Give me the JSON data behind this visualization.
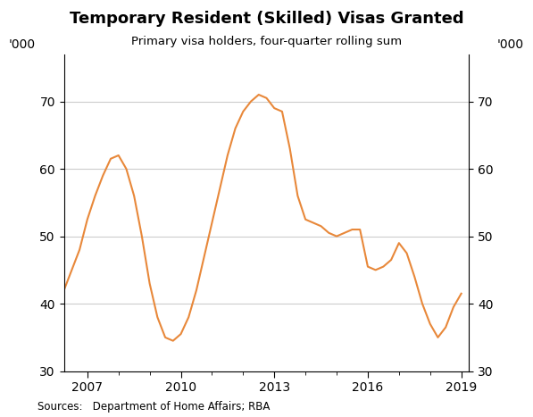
{
  "title": "Temporary Resident (Skilled) Visas Granted",
  "subtitle": "Primary visa holders, four-quarter rolling sum",
  "ylabel_left": "'000",
  "ylabel_right": "'000",
  "source": "Sources:   Department of Home Affairs; RBA",
  "line_color": "#E8883A",
  "ylim": [
    30,
    77
  ],
  "yticks": [
    30,
    40,
    50,
    60,
    70
  ],
  "xlim": [
    2006.25,
    2019.25
  ],
  "xtick_years": [
    2007,
    2010,
    2013,
    2016,
    2019
  ],
  "data": {
    "x": [
      2006.0,
      2006.25,
      2006.5,
      2006.75,
      2007.0,
      2007.25,
      2007.5,
      2007.75,
      2008.0,
      2008.25,
      2008.5,
      2008.75,
      2009.0,
      2009.25,
      2009.5,
      2009.75,
      2010.0,
      2010.25,
      2010.5,
      2010.75,
      2011.0,
      2011.25,
      2011.5,
      2011.75,
      2012.0,
      2012.25,
      2012.5,
      2012.75,
      2013.0,
      2013.25,
      2013.5,
      2013.75,
      2014.0,
      2014.25,
      2014.5,
      2014.75,
      2015.0,
      2015.25,
      2015.5,
      2015.75,
      2016.0,
      2016.25,
      2016.5,
      2016.75,
      2017.0,
      2017.25,
      2017.5,
      2017.75,
      2018.0,
      2018.25,
      2018.5,
      2018.75,
      2019.0
    ],
    "y": [
      40.0,
      42.0,
      45.0,
      48.0,
      52.5,
      56.0,
      59.0,
      61.5,
      62.0,
      60.0,
      56.0,
      50.0,
      43.0,
      38.0,
      35.0,
      34.5,
      35.5,
      38.0,
      42.0,
      47.0,
      52.0,
      57.0,
      62.0,
      66.0,
      68.5,
      70.0,
      71.0,
      70.5,
      69.0,
      68.5,
      63.0,
      56.0,
      52.5,
      52.0,
      51.5,
      50.5,
      50.0,
      50.5,
      51.0,
      51.0,
      45.5,
      45.0,
      45.5,
      46.5,
      49.0,
      47.5,
      44.0,
      40.0,
      37.0,
      35.0,
      36.5,
      39.5,
      41.5
    ]
  }
}
